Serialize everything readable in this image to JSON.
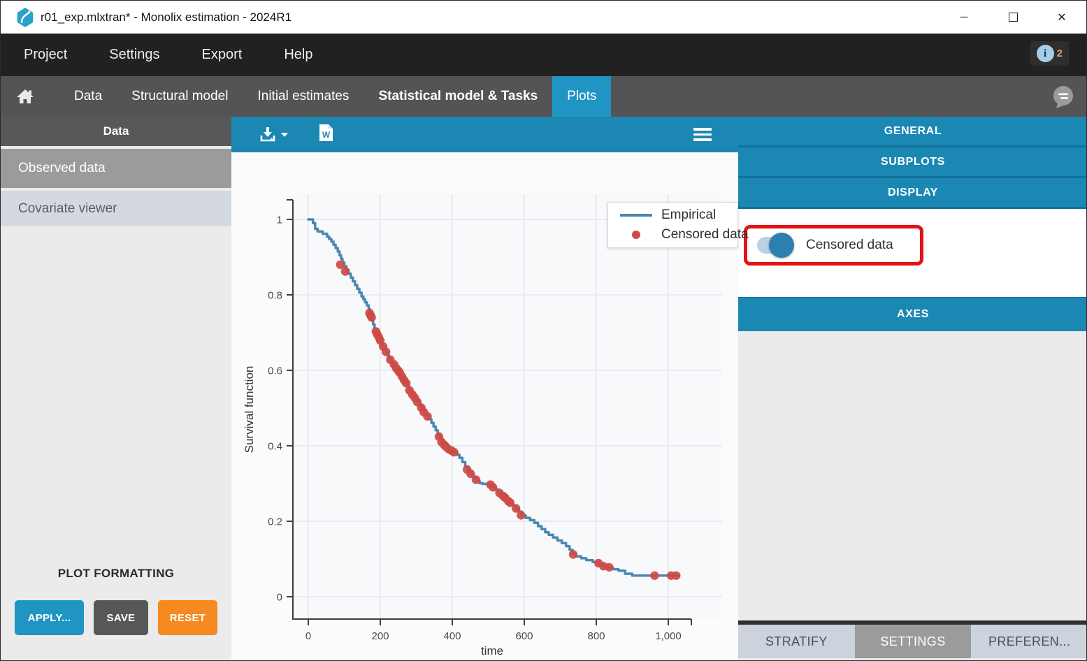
{
  "window": {
    "title": "r01_exp.mlxtran* - Monolix estimation - 2024R1",
    "controls": {
      "minimize": "─",
      "close": "✕"
    }
  },
  "menubar": {
    "items": [
      "Project",
      "Settings",
      "Export",
      "Help"
    ],
    "info_badge": {
      "icon": "info-icon",
      "glyph": "i",
      "count": "2"
    }
  },
  "tabbar": {
    "home_icon": "home-icon",
    "tabs": [
      {
        "label": "Data"
      },
      {
        "label": "Structural model"
      },
      {
        "label": "Initial estimates"
      },
      {
        "label": "Statistical model & Tasks"
      },
      {
        "label": "Plots"
      }
    ],
    "active_tab": "Plots",
    "chat_icon": "chat-icon"
  },
  "sidebar": {
    "header": "Data",
    "items": [
      {
        "label": "Observed data",
        "selected": true
      },
      {
        "label": "Covariate viewer",
        "selected": false
      }
    ],
    "plot_formatting": {
      "title": "PLOT FORMATTING",
      "buttons": [
        {
          "label": "APPLY...",
          "color": "#2095c3"
        },
        {
          "label": "SAVE",
          "color": "#575757"
        },
        {
          "label": "RESET",
          "color": "#f6891f"
        }
      ]
    }
  },
  "plot_toolbar": {
    "icons": [
      "download-icon",
      "dropdown-caret-icon",
      "word-export-icon",
      "menu-icon"
    ],
    "word_letter": "W"
  },
  "chart_data": {
    "type": "line",
    "subtype": "kaplan-meier-step",
    "title": "",
    "xlabel": "time",
    "ylabel": "Survival function",
    "xlim": [
      -45,
      1075
    ],
    "ylim": [
      -0.06,
      1.08
    ],
    "xticks": [
      0,
      200,
      400,
      600,
      800,
      1000
    ],
    "xtick_labels": [
      "0",
      "200",
      "400",
      "600",
      "800",
      "1,000"
    ],
    "yticks": [
      0,
      0.2,
      0.4,
      0.6,
      0.8,
      1
    ],
    "ytick_labels": [
      "0",
      "0.2",
      "0.4",
      "0.6",
      "0.8",
      "1"
    ],
    "grid": true,
    "plot_bg": "#f8f9fb",
    "grid_color": "#e3e6eb",
    "axis_color": "#3f3f3f",
    "legend": {
      "position": "top-right",
      "entries": [
        {
          "label": "Empirical",
          "type": "line",
          "color": "#4c87b2"
        },
        {
          "label": "Censored data",
          "type": "dot",
          "color": "#cd4a45"
        }
      ]
    },
    "series": [
      {
        "name": "Empirical",
        "type": "step-line",
        "color": "#4c87b2",
        "points": [
          [
            0,
            1
          ],
          [
            13,
            0.99
          ],
          [
            19,
            0.975
          ],
          [
            26,
            0.968
          ],
          [
            40,
            0.962
          ],
          [
            52,
            0.954
          ],
          [
            58,
            0.948
          ],
          [
            64,
            0.941
          ],
          [
            70,
            0.933
          ],
          [
            76,
            0.924
          ],
          [
            82,
            0.915
          ],
          [
            87,
            0.905
          ],
          [
            91,
            0.896
          ],
          [
            95,
            0.886
          ],
          [
            100,
            0.876
          ],
          [
            106,
            0.866
          ],
          [
            112,
            0.856
          ],
          [
            118,
            0.846
          ],
          [
            124,
            0.836
          ],
          [
            130,
            0.826
          ],
          [
            136,
            0.816
          ],
          [
            142,
            0.806
          ],
          [
            148,
            0.796
          ],
          [
            153,
            0.788
          ],
          [
            158,
            0.78
          ],
          [
            163,
            0.772
          ],
          [
            168,
            0.762
          ],
          [
            171,
            0.753
          ],
          [
            174,
            0.744
          ],
          [
            177,
            0.734
          ],
          [
            180,
            0.722
          ],
          [
            184,
            0.71
          ],
          [
            188,
            0.701
          ],
          [
            192,
            0.693
          ],
          [
            196,
            0.685
          ],
          [
            200,
            0.677
          ],
          [
            204,
            0.669
          ],
          [
            208,
            0.661
          ],
          [
            212,
            0.654
          ],
          [
            216,
            0.647
          ],
          [
            220,
            0.639
          ],
          [
            225,
            0.631
          ],
          [
            230,
            0.624
          ],
          [
            235,
            0.616
          ],
          [
            240,
            0.609
          ],
          [
            245,
            0.602
          ],
          [
            250,
            0.596
          ],
          [
            255,
            0.589
          ],
          [
            260,
            0.582
          ],
          [
            265,
            0.575
          ],
          [
            270,
            0.567
          ],
          [
            275,
            0.559
          ],
          [
            280,
            0.55
          ],
          [
            285,
            0.542
          ],
          [
            290,
            0.534
          ],
          [
            295,
            0.526
          ],
          [
            300,
            0.519
          ],
          [
            306,
            0.511
          ],
          [
            312,
            0.503
          ],
          [
            318,
            0.495
          ],
          [
            324,
            0.487
          ],
          [
            330,
            0.479
          ],
          [
            336,
            0.471
          ],
          [
            342,
            0.461
          ],
          [
            348,
            0.451
          ],
          [
            354,
            0.441
          ],
          [
            360,
            0.43
          ],
          [
            366,
            0.419
          ],
          [
            372,
            0.409
          ],
          [
            378,
            0.402
          ],
          [
            384,
            0.395
          ],
          [
            390,
            0.39
          ],
          [
            398,
            0.386
          ],
          [
            406,
            0.382
          ],
          [
            414,
            0.376
          ],
          [
            420,
            0.368
          ],
          [
            428,
            0.357
          ],
          [
            436,
            0.345
          ],
          [
            444,
            0.334
          ],
          [
            452,
            0.324
          ],
          [
            460,
            0.314
          ],
          [
            468,
            0.307
          ],
          [
            476,
            0.301
          ],
          [
            484,
            0.299
          ],
          [
            505,
            0.297
          ],
          [
            512,
            0.29
          ],
          [
            520,
            0.284
          ],
          [
            528,
            0.277
          ],
          [
            536,
            0.271
          ],
          [
            544,
            0.264
          ],
          [
            552,
            0.257
          ],
          [
            560,
            0.25
          ],
          [
            568,
            0.242
          ],
          [
            576,
            0.234
          ],
          [
            584,
            0.226
          ],
          [
            592,
            0.215
          ],
          [
            604,
            0.209
          ],
          [
            616,
            0.203
          ],
          [
            628,
            0.196
          ],
          [
            638,
            0.187
          ],
          [
            648,
            0.179
          ],
          [
            658,
            0.171
          ],
          [
            668,
            0.164
          ],
          [
            680,
            0.157
          ],
          [
            692,
            0.149
          ],
          [
            704,
            0.142
          ],
          [
            716,
            0.134
          ],
          [
            726,
            0.124
          ],
          [
            734,
            0.114
          ],
          [
            744,
            0.107
          ],
          [
            758,
            0.102
          ],
          [
            772,
            0.097
          ],
          [
            790,
            0.092
          ],
          [
            806,
            0.087
          ],
          [
            818,
            0.081
          ],
          [
            832,
            0.077
          ],
          [
            846,
            0.073
          ],
          [
            862,
            0.069
          ],
          [
            880,
            0.061
          ],
          [
            900,
            0.056
          ],
          [
            1030,
            0.056
          ]
        ]
      },
      {
        "name": "Censored data",
        "type": "scatter",
        "color": "#cd4a45",
        "points": [
          [
            89,
            0.88
          ],
          [
            103,
            0.862
          ],
          [
            170,
            0.752
          ],
          [
            173,
            0.746
          ],
          [
            176,
            0.74
          ],
          [
            188,
            0.703
          ],
          [
            191,
            0.696
          ],
          [
            196,
            0.688
          ],
          [
            200,
            0.679
          ],
          [
            208,
            0.663
          ],
          [
            216,
            0.649
          ],
          [
            228,
            0.628
          ],
          [
            238,
            0.616
          ],
          [
            244,
            0.606
          ],
          [
            250,
            0.599
          ],
          [
            254,
            0.594
          ],
          [
            260,
            0.584
          ],
          [
            266,
            0.574
          ],
          [
            272,
            0.566
          ],
          [
            281,
            0.547
          ],
          [
            289,
            0.536
          ],
          [
            296,
            0.527
          ],
          [
            303,
            0.516
          ],
          [
            314,
            0.501
          ],
          [
            321,
            0.489
          ],
          [
            331,
            0.478
          ],
          [
            363,
            0.424
          ],
          [
            370,
            0.41
          ],
          [
            377,
            0.403
          ],
          [
            382,
            0.398
          ],
          [
            390,
            0.391
          ],
          [
            398,
            0.387
          ],
          [
            405,
            0.383
          ],
          [
            441,
            0.337
          ],
          [
            451,
            0.326
          ],
          [
            466,
            0.31
          ],
          [
            506,
            0.297
          ],
          [
            513,
            0.29
          ],
          [
            531,
            0.275
          ],
          [
            541,
            0.267
          ],
          [
            547,
            0.262
          ],
          [
            556,
            0.253
          ],
          [
            561,
            0.249
          ],
          [
            577,
            0.234
          ],
          [
            591,
            0.216
          ],
          [
            736,
            0.112
          ],
          [
            806,
            0.089
          ],
          [
            820,
            0.081
          ],
          [
            836,
            0.078
          ],
          [
            962,
            0.056
          ],
          [
            1008,
            0.056
          ],
          [
            1022,
            0.056
          ]
        ]
      }
    ]
  },
  "right_panel": {
    "sections": {
      "general": "GENERAL",
      "subplots": "SUBPLOTS",
      "display": "DISPLAY",
      "axes": "AXES"
    },
    "display_controls": {
      "censored_toggle": {
        "label": "Censored data",
        "state": "on",
        "highlighted": true,
        "highlight_color": "#e31313"
      }
    },
    "bottom_tabs": [
      {
        "label": "STRATIFY",
        "active": false
      },
      {
        "label": "SETTINGS",
        "active": true
      },
      {
        "label": "PREFEREN...",
        "active": false
      }
    ]
  },
  "colors": {
    "accent_blue": "#2095c3",
    "toolbar_blue": "#1c87b2",
    "header_blue": "#1b88b3",
    "menubar_dark": "#212121",
    "tabbar_gray": "#545456",
    "selected_gray": "#9b9b9b",
    "empirical_line": "#4c87b2",
    "censored_dot": "#cd4a45",
    "reset_orange": "#f6891f",
    "highlight_red": "#e31313"
  }
}
